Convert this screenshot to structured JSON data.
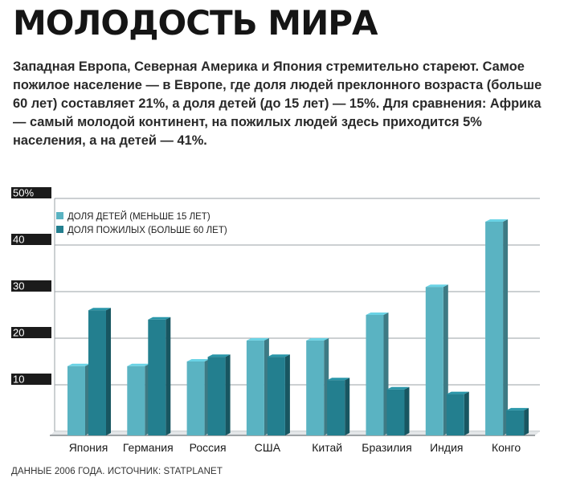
{
  "header": {
    "title": "МОЛОДОСТЬ МИРА",
    "subtitle": "Западная Европа, Северная Америка и Япония стремительно стареют. Самое пожилое население — в Европе, где доля людей преклонного возраста (больше 60 лет) составляет 21%, а доля детей (до 15 лет) — 15%. Для сравнения: Африка — самый молодой континент, на пожилых людей здесь приходится 5% населения, а на детей — 41%."
  },
  "footer": {
    "source": "ДАННЫЕ 2006 ГОДА. ИСТОЧНИК: STATPLANET"
  },
  "colors": {
    "children": "#5ab3c2",
    "elderly": "#237f8f",
    "grid": "#9aa0a6",
    "tick_bg": "#1b1b1b"
  },
  "chart_data": {
    "type": "bar",
    "categories": [
      "Япония",
      "Германия",
      "Россия",
      "США",
      "Китай",
      "Бразилия",
      "Индия",
      "Конго"
    ],
    "series": [
      {
        "name": "ДОЛЯ ДЕТЕЙ (МЕНЬШЕ 15 ЛЕТ)",
        "values": [
          14,
          14,
          15,
          19.5,
          19.5,
          25,
          31,
          45
        ]
      },
      {
        "name": "ДОЛЯ ПОЖИЛЫХ (БОЛЬШЕ 60 ЛЕТ)",
        "values": [
          26,
          24,
          16,
          16,
          11,
          9,
          8,
          4.5
        ]
      }
    ],
    "yticks": [
      {
        "value": 50,
        "label": "50%"
      },
      {
        "value": 40,
        "label": "40"
      },
      {
        "value": 30,
        "label": "30"
      },
      {
        "value": 20,
        "label": "20"
      },
      {
        "value": 10,
        "label": "10"
      }
    ],
    "ylim": [
      -5,
      50
    ],
    "legend_position": "top-left",
    "grid": true
  }
}
